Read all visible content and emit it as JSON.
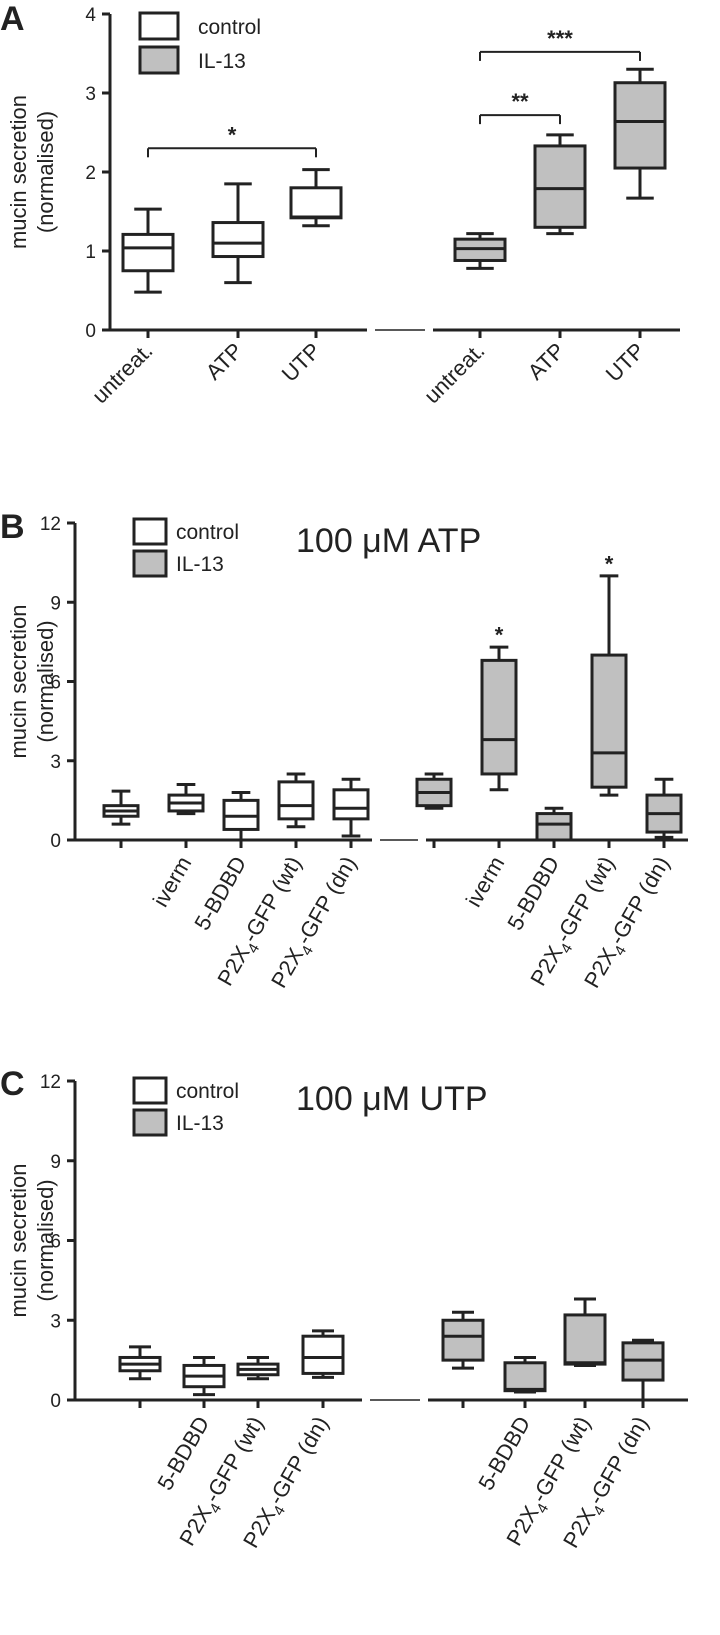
{
  "figure": {
    "legend": [
      {
        "label": "control",
        "fill": "#ffffff"
      },
      {
        "label": "IL-13",
        "fill": "#c0c0c0"
      }
    ],
    "ylabel_line1": "mucin secretion",
    "ylabel_line2": "(normalised)"
  },
  "chart_data": [
    {
      "panel": "A",
      "type": "box",
      "title": "",
      "ylabel": "mucin secretion (normalised)",
      "ylim": [
        0,
        4
      ],
      "yticks": [
        "0",
        "1",
        "2",
        "3",
        "4"
      ],
      "groups": [
        {
          "name": "control",
          "fill": "#ffffff",
          "boxes": [
            {
              "label": "untreat.",
              "min": 0.48,
              "q1": 0.75,
              "median": 1.04,
              "q3": 1.21,
              "max": 1.53
            },
            {
              "label": "ATP",
              "min": 0.6,
              "q1": 0.93,
              "median": 1.1,
              "q3": 1.36,
              "max": 1.85
            },
            {
              "label": "UTP",
              "min": 1.32,
              "q1": 1.42,
              "median": 1.43,
              "q3": 1.8,
              "max": 2.03
            }
          ]
        },
        {
          "name": "IL-13",
          "fill": "#c0c0c0",
          "boxes": [
            {
              "label": "untreat.",
              "min": 0.78,
              "q1": 0.88,
              "median": 1.03,
              "q3": 1.15,
              "max": 1.22
            },
            {
              "label": "ATP",
              "min": 1.22,
              "q1": 1.3,
              "median": 1.79,
              "q3": 2.33,
              "max": 2.47
            },
            {
              "label": "UTP",
              "min": 1.67,
              "q1": 2.05,
              "median": 2.64,
              "q3": 3.13,
              "max": 3.3
            }
          ]
        }
      ],
      "significance": [
        {
          "from": [
            0,
            0
          ],
          "to": [
            0,
            2
          ],
          "y": 2.3,
          "label": "*"
        },
        {
          "from": [
            1,
            0
          ],
          "to": [
            1,
            1
          ],
          "y": 2.72,
          "label": "**"
        },
        {
          "from": [
            1,
            0
          ],
          "to": [
            1,
            2
          ],
          "y": 3.52,
          "label": "***"
        }
      ]
    },
    {
      "panel": "B",
      "type": "box",
      "title": "100 μM ATP",
      "ylabel": "mucin secretion (normalised)",
      "ylim": [
        0,
        12
      ],
      "yticks": [
        "0",
        "3",
        "6",
        "9",
        "12"
      ],
      "groups": [
        {
          "name": "control",
          "fill": "#ffffff",
          "boxes": [
            {
              "label": "",
              "min": 0.6,
              "q1": 0.9,
              "median": 1.1,
              "q3": 1.3,
              "max": 1.85
            },
            {
              "label": "iverm",
              "min": 1.0,
              "q1": 1.1,
              "median": 1.4,
              "q3": 1.7,
              "max": 2.1
            },
            {
              "label": "5-BDBD",
              "min": 0.0,
              "q1": 0.4,
              "median": 0.9,
              "q3": 1.5,
              "max": 1.8
            },
            {
              "label": "P2X4-GFP (wt)",
              "min": 0.5,
              "q1": 0.8,
              "median": 1.3,
              "q3": 2.2,
              "max": 2.5
            },
            {
              "label": "P2X4-GFP (dn)",
              "min": 0.15,
              "q1": 0.8,
              "median": 1.2,
              "q3": 1.9,
              "max": 2.3
            }
          ]
        },
        {
          "name": "IL-13",
          "fill": "#c0c0c0",
          "boxes": [
            {
              "label": "",
              "min": 1.2,
              "q1": 1.3,
              "median": 1.8,
              "q3": 2.3,
              "max": 2.5
            },
            {
              "label": "iverm",
              "min": 1.9,
              "q1": 2.5,
              "median": 3.8,
              "q3": 6.8,
              "max": 7.3
            },
            {
              "label": "5-BDBD",
              "min": 0.0,
              "q1": 0.0,
              "median": 0.6,
              "q3": 1.0,
              "max": 1.2
            },
            {
              "label": "P2X4-GFP (wt)",
              "min": 1.7,
              "q1": 2.0,
              "median": 3.3,
              "q3": 7.0,
              "max": 10.0
            },
            {
              "label": "P2X4-GFP (dn)",
              "min": 0.1,
              "q1": 0.3,
              "median": 1.0,
              "q3": 1.7,
              "max": 2.3
            }
          ]
        }
      ],
      "stars": [
        {
          "group": 1,
          "box": 1,
          "y": 8.0,
          "label": "*"
        },
        {
          "group": 1,
          "box": 3,
          "y": 10.7,
          "label": "*"
        }
      ]
    },
    {
      "panel": "C",
      "type": "box",
      "title": "100 μM UTP",
      "ylabel": "mucin secretion (normalised)",
      "ylim": [
        0,
        12
      ],
      "yticks": [
        "0",
        "3",
        "6",
        "9",
        "12"
      ],
      "groups": [
        {
          "name": "control",
          "fill": "#ffffff",
          "boxes": [
            {
              "label": "",
              "min": 0.8,
              "q1": 1.1,
              "median": 1.35,
              "q3": 1.6,
              "max": 2.0
            },
            {
              "label": "5-BDBD",
              "min": 0.2,
              "q1": 0.5,
              "median": 0.9,
              "q3": 1.3,
              "max": 1.6
            },
            {
              "label": "P2X4-GFP (wt)",
              "min": 0.8,
              "q1": 0.95,
              "median": 1.15,
              "q3": 1.35,
              "max": 1.6
            },
            {
              "label": "P2X4-GFP (dn)",
              "min": 0.85,
              "q1": 1.0,
              "median": 1.6,
              "q3": 2.4,
              "max": 2.6
            }
          ]
        },
        {
          "name": "IL-13",
          "fill": "#c0c0c0",
          "boxes": [
            {
              "label": "",
              "min": 1.2,
              "q1": 1.5,
              "median": 2.4,
              "q3": 3.0,
              "max": 3.3
            },
            {
              "label": "5-BDBD",
              "min": 0.3,
              "q1": 0.35,
              "median": 0.4,
              "q3": 1.4,
              "max": 1.6
            },
            {
              "label": "P2X4-GFP (wt)",
              "min": 1.3,
              "q1": 1.35,
              "median": 1.4,
              "q3": 3.2,
              "max": 3.8
            },
            {
              "label": "P2X4-GFP (dn)",
              "min": 0.0,
              "q1": 0.75,
              "median": 1.5,
              "q3": 2.15,
              "max": 2.25
            }
          ]
        }
      ]
    }
  ]
}
